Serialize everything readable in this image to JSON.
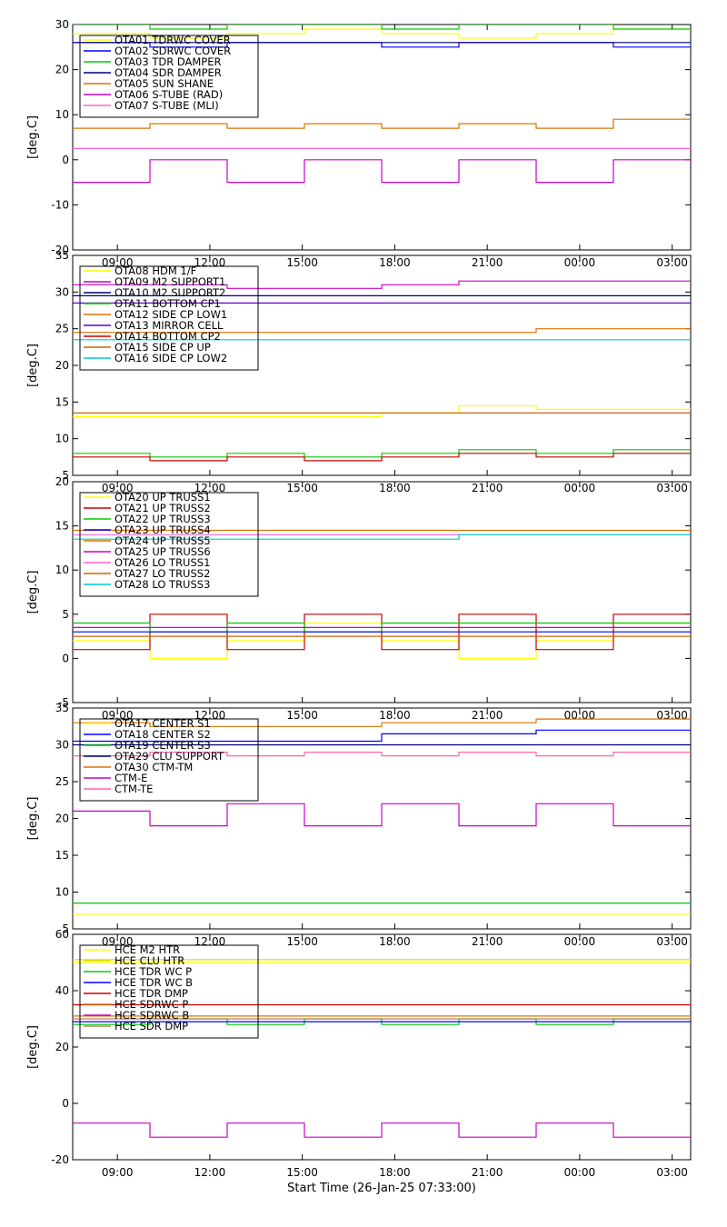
{
  "xlabel": "Start Time (26-Jan-25 07:33:00)",
  "x_ticks": [
    "09:00",
    "12:00",
    "15:00",
    "18:00",
    "21:00",
    "00:00",
    "03:00"
  ],
  "x_range_hours": [
    7.55,
    27.6
  ],
  "chart_data": [
    {
      "type": "line",
      "ylabel": "[deg.C]",
      "ylim": [
        -20,
        30
      ],
      "yticks": [
        -20,
        -10,
        0,
        10,
        20,
        30
      ],
      "legend": "top-left",
      "series": [
        {
          "name": "OTA01 TDRWC COVER",
          "color": "#ffff00",
          "values": [
            28,
            27,
            28,
            29,
            28,
            27,
            28,
            29
          ]
        },
        {
          "name": "OTA02 SDRWC COVER",
          "color": "#0000ff",
          "values": [
            26,
            25,
            26,
            26,
            25,
            26,
            26,
            25
          ]
        },
        {
          "name": "OTA03 TDR DAMPER",
          "color": "#00cc00",
          "values": [
            30,
            29,
            30,
            30,
            29,
            30,
            30,
            29
          ]
        },
        {
          "name": "OTA04 SDR DAMPER",
          "color": "#000080",
          "values": [
            26,
            26,
            26,
            26,
            26,
            26,
            26,
            26
          ]
        },
        {
          "name": "OTA05 SUN SHANE",
          "color": "#e07000",
          "values": [
            7,
            8,
            7,
            8,
            7,
            8,
            7,
            9
          ]
        },
        {
          "name": "OTA06 S-TUBE (RAD)",
          "color": "#cc00cc",
          "values": [
            -5,
            0,
            -5,
            0,
            -5,
            0,
            -5,
            0
          ]
        },
        {
          "name": "OTA07 S-TUBE (MLI)",
          "color": "#ff66cc",
          "values": [
            2.5,
            2.5,
            2.5,
            2.5,
            2.5,
            2.5,
            2.5,
            2.5
          ]
        }
      ]
    },
    {
      "type": "line",
      "ylabel": "[deg.C]",
      "ylim": [
        5,
        35
      ],
      "yticks": [
        5,
        10,
        15,
        20,
        25,
        30,
        35
      ],
      "legend": "top-left",
      "series": [
        {
          "name": "OTA08 HDM 1/F",
          "color": "#ffff00",
          "values": [
            13,
            13,
            13,
            13,
            13.5,
            14.5,
            14,
            14
          ]
        },
        {
          "name": "OTA09 M2 SUPPORT1",
          "color": "#cc00cc",
          "values": [
            31,
            31,
            30.5,
            30.5,
            31,
            31.5,
            31.5,
            31.5
          ]
        },
        {
          "name": "OTA10 M2 SUPPORT2",
          "color": "#000080",
          "values": [
            29.5,
            29.5,
            29.5,
            29.5,
            29.5,
            29.5,
            29.5,
            29.5
          ]
        },
        {
          "name": "OTA11 BOTTOM CP1",
          "color": "#00cc00",
          "values": [
            8,
            7.5,
            8,
            7.5,
            8,
            8.5,
            8,
            8.5
          ]
        },
        {
          "name": "OTA12 SIDE CP LOW1",
          "color": "#e07000",
          "values": [
            24.5,
            24.5,
            24.5,
            24.5,
            24.5,
            24.5,
            25,
            25
          ]
        },
        {
          "name": "OTA13 MIRROR CELL",
          "color": "#6600cc",
          "values": [
            28.5,
            28.5,
            28.5,
            28.5,
            28.5,
            28.5,
            28.5,
            28.5
          ]
        },
        {
          "name": "OTA14 BOTTOM CP2",
          "color": "#cc0000",
          "values": [
            7.5,
            7,
            7.5,
            7,
            7.5,
            8,
            7.5,
            8
          ]
        },
        {
          "name": "OTA15 SIDE CP UP",
          "color": "#cc6600",
          "values": [
            13.5,
            13.5,
            13.5,
            13.5,
            13.5,
            13.5,
            13.5,
            13.5
          ]
        },
        {
          "name": "OTA16 SIDE CP LOW2",
          "color": "#00cccc",
          "values": [
            23.5,
            23.5,
            23.5,
            23.5,
            23.5,
            23.5,
            23.5,
            23.5
          ]
        }
      ]
    },
    {
      "type": "line",
      "ylabel": "[deg.C]",
      "ylim": [
        -5,
        20
      ],
      "yticks": [
        -5,
        0,
        5,
        10,
        15,
        20
      ],
      "legend": "top-left",
      "series": [
        {
          "name": "OTA20 UP TRUSS1",
          "color": "#ffff00",
          "values": [
            2,
            0,
            2,
            4,
            2,
            0,
            2,
            4
          ]
        },
        {
          "name": "OTA21 UP TRUSS2",
          "color": "#cc0000",
          "values": [
            1,
            5,
            1,
            5,
            1,
            5,
            1,
            5
          ]
        },
        {
          "name": "OTA22 UP TRUSS3",
          "color": "#00cc00",
          "values": [
            4,
            3,
            4,
            3,
            4,
            4,
            4,
            4
          ]
        },
        {
          "name": "OTA23 UP TRUSS4",
          "color": "#0000ff",
          "values": [
            3,
            3,
            3,
            3,
            3,
            3,
            3,
            3
          ]
        },
        {
          "name": "OTA24 UP TRUSS5",
          "color": "#e07000",
          "values": [
            14.5,
            14.5,
            14.5,
            14.5,
            14.5,
            14.5,
            14.5,
            14.5
          ]
        },
        {
          "name": "OTA25 UP TRUSS6",
          "color": "#cc00cc",
          "values": [
            3.5,
            3.5,
            3.5,
            3.5,
            3.5,
            3.5,
            3.5,
            3.5
          ]
        },
        {
          "name": "OTA26 LO TRUSS1",
          "color": "#ff66cc",
          "values": [
            14,
            14,
            14,
            14,
            14,
            14,
            14,
            14
          ]
        },
        {
          "name": "OTA27 LO TRUSS2",
          "color": "#cc6600",
          "values": [
            2.5,
            2.5,
            2.5,
            2.5,
            2.5,
            2.5,
            2.5,
            2.5
          ]
        },
        {
          "name": "OTA28 LO TRUSS3",
          "color": "#00cccc",
          "values": [
            13.5,
            13.5,
            13.5,
            13.5,
            13.5,
            14,
            14,
            14
          ]
        }
      ]
    },
    {
      "type": "line",
      "ylabel": "[deg.C]",
      "ylim": [
        5,
        35
      ],
      "yticks": [
        5,
        10,
        15,
        20,
        25,
        30,
        35
      ],
      "legend": "top-left",
      "series": [
        {
          "name": "OTA17 CENTER S1",
          "color": "#ffff00",
          "values": [
            7,
            7,
            7,
            7,
            7,
            7,
            7,
            7
          ]
        },
        {
          "name": "OTA18 CENTER S2",
          "color": "#0000ff",
          "values": [
            30.5,
            30.5,
            30.5,
            30.5,
            31.5,
            31.5,
            32,
            32
          ]
        },
        {
          "name": "OTA19 CENTER S3",
          "color": "#00cc00",
          "values": [
            8.5,
            8.5,
            8.5,
            8.5,
            8.5,
            8.5,
            8.5,
            8.5
          ]
        },
        {
          "name": "OTA29 CLU SUPPORT",
          "color": "#000080",
          "values": [
            30,
            30,
            30,
            30,
            30,
            30,
            30,
            30
          ]
        },
        {
          "name": "OTA30 CTM-TM",
          "color": "#e07000",
          "values": [
            33,
            32.5,
            32.5,
            32.5,
            33,
            33,
            33.5,
            33.5
          ]
        },
        {
          "name": "CTM-E",
          "color": "#cc00cc",
          "values": [
            21,
            19,
            22,
            19,
            22,
            19,
            22,
            19
          ]
        },
        {
          "name": "CTM-TE",
          "color": "#ff66aa",
          "values": [
            28.5,
            29,
            28.5,
            29,
            28.5,
            29,
            28.5,
            29
          ]
        }
      ]
    },
    {
      "type": "line",
      "ylabel": "[deg.C]",
      "ylim": [
        -20,
        60
      ],
      "yticks": [
        -20,
        0,
        20,
        40,
        60
      ],
      "legend": "top-left",
      "series": [
        {
          "name": "HCE M2 HTR",
          "color": "#ffff00",
          "values": [
            50,
            50,
            50,
            50,
            50,
            50,
            50,
            50
          ]
        },
        {
          "name": "HCE CLU HTR",
          "color": "#e0e000",
          "values": [
            51,
            51,
            51,
            51,
            51,
            51,
            51,
            51
          ]
        },
        {
          "name": "HCE TDR WC P",
          "color": "#00cc00",
          "values": [
            28,
            30,
            28,
            30,
            28,
            30,
            28,
            30
          ]
        },
        {
          "name": "HCE TDR WC B",
          "color": "#0000ff",
          "values": [
            29,
            29,
            29,
            29,
            29,
            29,
            29,
            29
          ]
        },
        {
          "name": "HCE TDR DMP",
          "color": "#cc0000",
          "values": [
            35,
            35,
            35,
            35,
            35,
            35,
            35,
            35
          ]
        },
        {
          "name": "HCE SDRWC P",
          "color": "#e07000",
          "values": [
            31,
            31,
            31,
            31,
            31,
            31,
            31,
            31
          ]
        },
        {
          "name": "HCE SDRWC B",
          "color": "#cc00cc",
          "values": [
            -7,
            -12,
            -7,
            -12,
            -7,
            -12,
            -7,
            -12
          ]
        },
        {
          "name": "HCE SDR DMP",
          "color": "#c08060",
          "values": [
            30,
            30,
            30,
            30,
            30,
            30,
            30,
            30
          ]
        }
      ]
    }
  ]
}
